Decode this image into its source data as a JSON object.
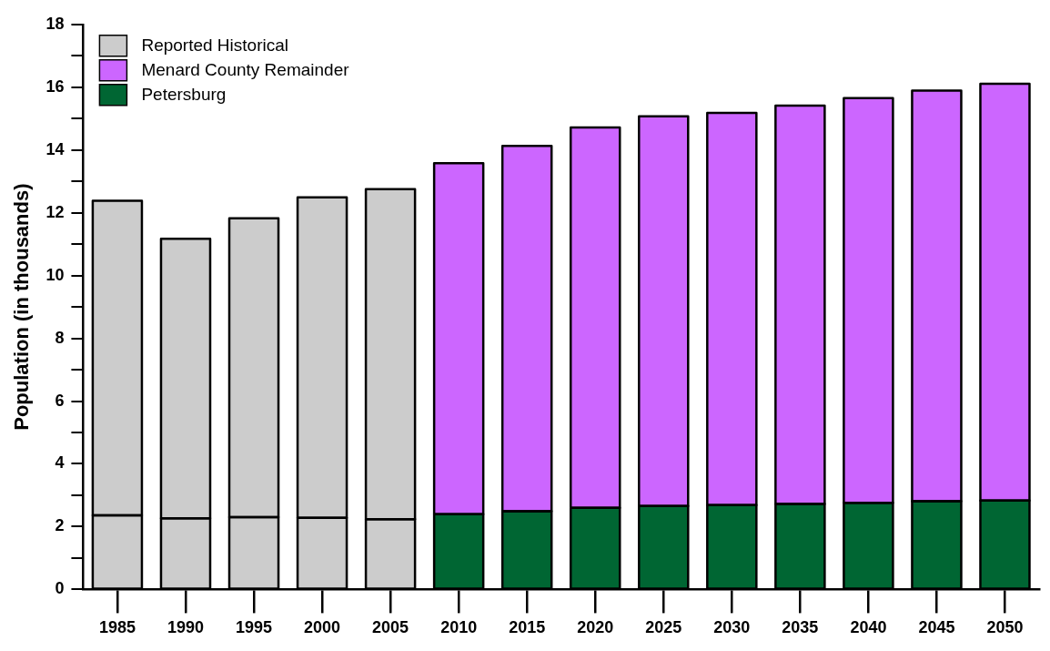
{
  "chart_data": {
    "type": "bar",
    "ylabel": "Population (in thousands)",
    "stacked": true,
    "legend": "top left",
    "grid": false,
    "categories": [
      "1985",
      "1990",
      "1995",
      "2000",
      "2005",
      "2010",
      "2015",
      "2020",
      "2025",
      "2030",
      "2035",
      "2040",
      "2045",
      "2050"
    ],
    "ylim": [
      0,
      18
    ],
    "yticks": [
      0,
      {
        "value": 1,
        "label": null
      },
      2,
      {
        "value": 3,
        "label": null
      },
      4,
      {
        "value": 5,
        "label": null
      },
      6,
      {
        "value": 7,
        "label": null
      },
      8,
      {
        "value": 9,
        "label": null
      },
      10,
      {
        "value": 11,
        "label": null
      },
      12,
      {
        "value": 13,
        "label": null
      },
      14,
      {
        "value": 15,
        "label": null
      },
      16,
      {
        "value": 17,
        "label": null
      },
      18
    ],
    "series": [
      {
        "color": "#cccccc",
        "values": [
          2.36,
          2.27,
          2.3,
          2.28,
          2.24,
          null,
          null,
          null,
          null,
          null,
          null,
          null,
          null,
          null
        ]
      },
      {
        "name": "Petersburg",
        "color": "#006633",
        "values": [
          null,
          null,
          null,
          null,
          null,
          2.4,
          2.49,
          2.6,
          2.66,
          2.69,
          2.72,
          2.76,
          2.81,
          2.83
        ]
      },
      {
        "name": "Menard County Remainder",
        "color": "#cc66ff",
        "values": [
          null,
          null,
          null,
          null,
          null,
          11.18,
          11.64,
          12.12,
          12.41,
          12.49,
          12.69,
          12.89,
          13.08,
          13.28
        ]
      },
      {
        "name": "Reported Historical",
        "color": "#cccccc",
        "values": [
          10.02,
          8.9,
          9.52,
          10.21,
          10.51,
          null,
          null,
          null,
          null,
          null,
          null,
          null,
          null,
          null
        ]
      }
    ]
  }
}
